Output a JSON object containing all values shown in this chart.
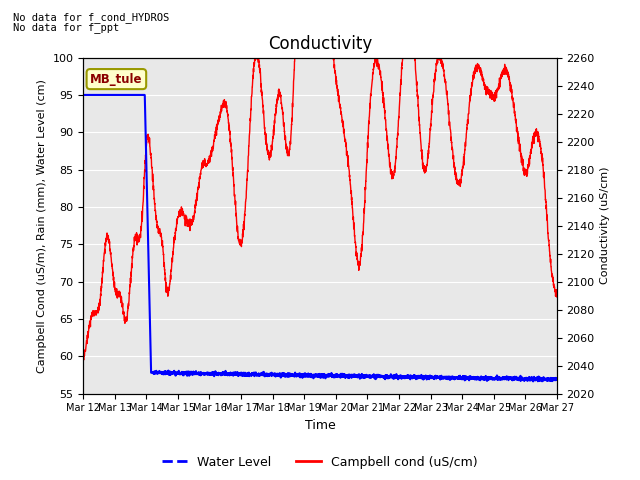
{
  "title": "Conductivity",
  "xlabel": "Time",
  "ylabel_left": "Campbell Cond (uS/m), Rain (mm), Water Level (cm)",
  "ylabel_right": "Conductivity (uS/cm)",
  "annotation1": "No data for f_cond_HYDROS",
  "annotation2": "No data for f_ppt",
  "box_label": "MB_tule",
  "ylim_left": [
    55,
    100
  ],
  "ylim_right": [
    2020,
    2260
  ],
  "xtick_labels": [
    "Mar 12",
    "Mar 13",
    "Mar 14",
    "Mar 15",
    "Mar 16",
    "Mar 17",
    "Mar 18",
    "Mar 19",
    "Mar 20",
    "Mar 21",
    "Mar 22",
    "Mar 23",
    "Mar 24",
    "Mar 25",
    "Mar 26",
    "Mar 27"
  ],
  "bg_color": "#e8e8e8",
  "water_level_color": "#0000ff",
  "campbell_cond_color": "#ff0000",
  "legend_labels": [
    "Water Level",
    "Campbell cond (uS/cm)"
  ],
  "title_fontsize": 12,
  "label_fontsize": 8,
  "tick_fontsize": 8,
  "xlabel_fontsize": 9
}
